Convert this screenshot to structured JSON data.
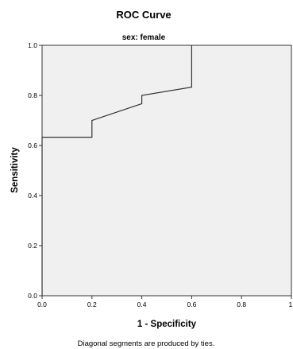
{
  "chart_data": {
    "type": "line",
    "title": "ROC Curve",
    "subtitle": "sex: female",
    "xlabel": "1 - Specificity",
    "ylabel": "Sensitivity",
    "xlim": [
      0,
      1
    ],
    "ylim": [
      0,
      1
    ],
    "x_ticks": [
      "0.0",
      "0.2",
      "0.4",
      "0.6",
      "0.8",
      "1."
    ],
    "y_ticks": [
      "0.0",
      "0.2",
      "0.4",
      "0.6",
      "0.8",
      "1.0"
    ],
    "grid": false,
    "legend": "none",
    "series": [
      {
        "x": [
          0.0,
          0.0,
          0.2,
          0.2,
          0.4,
          0.4,
          0.6,
          0.6
        ],
        "y": [
          0.0,
          0.633,
          0.633,
          0.7,
          0.767,
          0.8,
          0.833,
          1.0
        ]
      }
    ],
    "footnote": "Diagonal segments are produced by ties.",
    "colors": {
      "plot_background": "#f0f0f0",
      "line": "#333333",
      "frame": "#333333"
    }
  }
}
